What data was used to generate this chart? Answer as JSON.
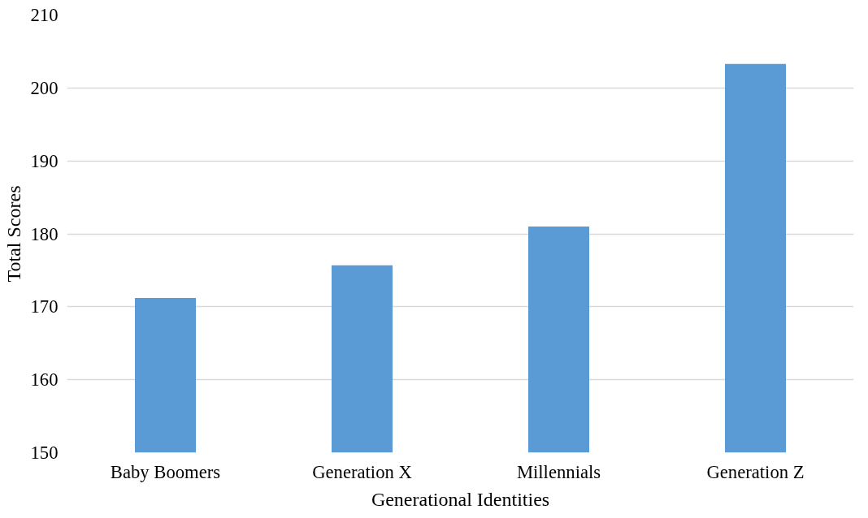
{
  "chart_data": {
    "type": "bar",
    "xlabel": "Generational Identities",
    "ylabel": "Total Scores",
    "categories": [
      "Baby Boomers",
      "Generation X",
      "Millennials",
      "Generation Z"
    ],
    "values": [
      171.2,
      175.7,
      181.0,
      203.3
    ],
    "color": "#5b9bd5",
    "ylim": [
      150,
      210
    ],
    "yticks": [
      150,
      160,
      170,
      180,
      190,
      200,
      210
    ],
    "grid": "y"
  }
}
